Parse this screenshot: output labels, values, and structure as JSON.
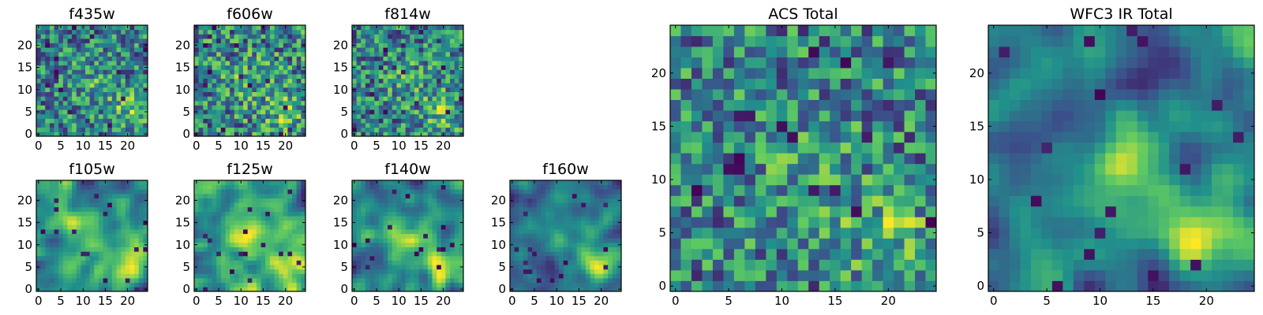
{
  "figure": {
    "colormap": "viridis",
    "colors": [
      "#440154",
      "#3b528b",
      "#21918c",
      "#5ec962",
      "#fde725"
    ]
  },
  "chart_data": [
    {
      "type": "heatmap",
      "title": "f435w",
      "grid_size": 25,
      "xlim": [
        -0.5,
        24.5
      ],
      "ylim": [
        -0.5,
        24.5
      ],
      "xticks": [
        0,
        5,
        10,
        15,
        20
      ],
      "yticks": [
        0,
        5,
        10,
        15,
        20
      ],
      "pattern": "noise",
      "seed": 11
    },
    {
      "type": "heatmap",
      "title": "f606w",
      "grid_size": 25,
      "xlim": [
        -0.5,
        24.5
      ],
      "ylim": [
        -0.5,
        24.5
      ],
      "xticks": [
        0,
        5,
        10,
        15,
        20
      ],
      "yticks": [
        0,
        5,
        10,
        15,
        20
      ],
      "pattern": "noise",
      "seed": 23
    },
    {
      "type": "heatmap",
      "title": "f814w",
      "grid_size": 25,
      "xlim": [
        -0.5,
        24.5
      ],
      "ylim": [
        -0.5,
        24.5
      ],
      "xticks": [
        0,
        5,
        10,
        15,
        20
      ],
      "yticks": [
        0,
        5,
        10,
        15,
        20
      ],
      "pattern": "noise",
      "seed": 37
    },
    {
      "type": "heatmap",
      "title": "f105w",
      "grid_size": 25,
      "xlim": [
        -0.5,
        24.5
      ],
      "ylim": [
        -0.5,
        24.5
      ],
      "xticks": [
        0,
        5,
        10,
        15,
        20
      ],
      "yticks": [
        0,
        5,
        10,
        15,
        20
      ],
      "pattern": "smooth",
      "seed": 41
    },
    {
      "type": "heatmap",
      "title": "f125w",
      "grid_size": 25,
      "xlim": [
        -0.5,
        24.5
      ],
      "ylim": [
        -0.5,
        24.5
      ],
      "xticks": [
        0,
        5,
        10,
        15,
        20
      ],
      "yticks": [
        0,
        5,
        10,
        15,
        20
      ],
      "pattern": "smooth",
      "seed": 53
    },
    {
      "type": "heatmap",
      "title": "f140w",
      "grid_size": 25,
      "xlim": [
        -0.5,
        24.5
      ],
      "ylim": [
        -0.5,
        24.5
      ],
      "xticks": [
        0,
        5,
        10,
        15,
        20
      ],
      "yticks": [
        0,
        5,
        10,
        15,
        20
      ],
      "pattern": "smooth",
      "seed": 67
    },
    {
      "type": "heatmap",
      "title": "f160w",
      "grid_size": 25,
      "xlim": [
        -0.5,
        24.5
      ],
      "ylim": [
        -0.5,
        24.5
      ],
      "xticks": [
        0,
        5,
        10,
        15,
        20
      ],
      "yticks": [
        0,
        5,
        10,
        15,
        20
      ],
      "pattern": "smooth",
      "seed": 79
    },
    {
      "type": "heatmap",
      "title": "ACS Total",
      "grid_size": 25,
      "xlim": [
        -0.5,
        24.5
      ],
      "ylim": [
        -0.5,
        24.5
      ],
      "xticks": [
        0,
        5,
        10,
        15,
        20
      ],
      "yticks": [
        0,
        5,
        10,
        15,
        20
      ],
      "pattern": "noise",
      "seed": 97
    },
    {
      "type": "heatmap",
      "title": "WFC3 IR Total",
      "grid_size": 25,
      "xlim": [
        -0.5,
        24.5
      ],
      "ylim": [
        -0.5,
        24.5
      ],
      "xticks": [
        0,
        5,
        10,
        15,
        20
      ],
      "yticks": [
        0,
        5,
        10,
        15,
        20
      ],
      "pattern": "smooth",
      "seed": 101
    }
  ]
}
